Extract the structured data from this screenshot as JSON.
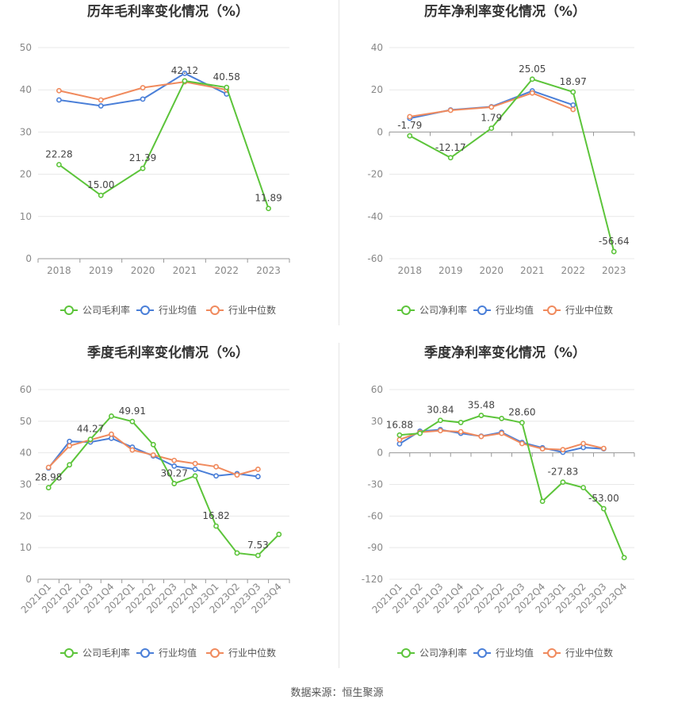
{
  "source_label": "数据来源：恒生聚源",
  "colors": {
    "company": "#5cc43a",
    "industry_avg": "#4a7fd8",
    "industry_median": "#f08a5d",
    "grid": "#e8e8e8",
    "axis_text": "#888888",
    "label_text": "#444444",
    "title_text": "#333333"
  },
  "chart_data": [
    {
      "id": "annual-gross",
      "type": "line",
      "title": "历年毛利率变化情况（%）",
      "categories": [
        "2018",
        "2019",
        "2020",
        "2021",
        "2022",
        "2023"
      ],
      "ylim": [
        0,
        50
      ],
      "yticks": [
        0,
        10,
        20,
        30,
        40,
        50
      ],
      "series": [
        {
          "name": "公司毛利率",
          "key": "company",
          "values": [
            22.28,
            15.0,
            21.39,
            42.12,
            40.58,
            11.89
          ]
        },
        {
          "name": "行业均值",
          "key": "industry_avg",
          "values": [
            37.6,
            36.2,
            37.8,
            43.9,
            39.0,
            null
          ]
        },
        {
          "name": "行业中位数",
          "key": "industry_median",
          "values": [
            39.8,
            37.6,
            40.5,
            41.9,
            40.0,
            null
          ]
        }
      ],
      "data_labels": [
        {
          "index": 0,
          "text": "22.28"
        },
        {
          "index": 1,
          "text": "15.00"
        },
        {
          "index": 2,
          "text": "21.39"
        },
        {
          "index": 3,
          "text": "42.12"
        },
        {
          "index": 4,
          "text": "40.58"
        },
        {
          "index": 5,
          "text": "11.89"
        }
      ]
    },
    {
      "id": "annual-net",
      "type": "line",
      "title": "历年净利率变化情况（%）",
      "categories": [
        "2018",
        "2019",
        "2020",
        "2021",
        "2022",
        "2023"
      ],
      "ylim": [
        -60,
        40
      ],
      "yticks": [
        -60,
        -40,
        -20,
        0,
        20,
        40
      ],
      "series": [
        {
          "name": "公司净利率",
          "key": "company",
          "values": [
            -1.79,
            -12.17,
            1.79,
            25.05,
            18.97,
            -56.64
          ]
        },
        {
          "name": "行业均值",
          "key": "industry_avg",
          "values": [
            6.5,
            10.5,
            12.0,
            19.5,
            12.8,
            null
          ]
        },
        {
          "name": "行业中位数",
          "key": "industry_median",
          "values": [
            7.3,
            10.3,
            11.8,
            18.5,
            10.7,
            null
          ]
        }
      ],
      "data_labels": [
        {
          "index": 0,
          "text": "-1.79"
        },
        {
          "index": 1,
          "text": "-12.17"
        },
        {
          "index": 2,
          "text": "1.79"
        },
        {
          "index": 3,
          "text": "25.05"
        },
        {
          "index": 4,
          "text": "18.97"
        },
        {
          "index": 5,
          "text": "-56.64"
        }
      ]
    },
    {
      "id": "quarterly-gross",
      "type": "line",
      "title": "季度毛利率变化情况（%）",
      "categories": [
        "2021Q1",
        "2021Q2",
        "2021Q3",
        "2021Q4",
        "2022Q1",
        "2022Q2",
        "2022Q3",
        "2022Q4",
        "2023Q1",
        "2023Q2",
        "2023Q3",
        "2023Q4"
      ],
      "ylim": [
        0,
        60
      ],
      "yticks": [
        0,
        10,
        20,
        30,
        40,
        50,
        60
      ],
      "series": [
        {
          "name": "公司毛利率",
          "key": "company",
          "values": [
            28.98,
            36.2,
            44.27,
            51.6,
            49.91,
            42.6,
            30.27,
            32.7,
            16.82,
            8.3,
            7.53,
            14.2
          ]
        },
        {
          "name": "行业均值",
          "key": "industry_avg",
          "values": [
            35.2,
            43.6,
            43.4,
            44.6,
            41.8,
            39.0,
            35.8,
            34.8,
            32.7,
            33.4,
            32.5,
            null
          ]
        },
        {
          "name": "行业中位数",
          "key": "industry_median",
          "values": [
            35.4,
            42.2,
            44.1,
            45.9,
            40.9,
            39.3,
            37.6,
            36.6,
            35.6,
            33.0,
            34.8,
            null
          ]
        }
      ],
      "data_labels": [
        {
          "index": 0,
          "text": "28.98"
        },
        {
          "index": 2,
          "text": "44.27"
        },
        {
          "index": 4,
          "text": "49.91"
        },
        {
          "index": 6,
          "text": "30.27"
        },
        {
          "index": 8,
          "text": "16.82"
        },
        {
          "index": 10,
          "text": "7.53"
        }
      ]
    },
    {
      "id": "quarterly-net",
      "type": "line",
      "title": "季度净利率变化情况（%）",
      "categories": [
        "2021Q1",
        "2021Q2",
        "2021Q3",
        "2021Q4",
        "2022Q1",
        "2022Q2",
        "2022Q3",
        "2022Q4",
        "2023Q1",
        "2023Q2",
        "2023Q3",
        "2023Q4"
      ],
      "ylim": [
        -120,
        60
      ],
      "yticks": [
        -120,
        -90,
        -60,
        -30,
        0,
        30,
        60
      ],
      "series": [
        {
          "name": "公司净利率",
          "key": "company",
          "values": [
            16.88,
            18.5,
            30.84,
            28.8,
            35.48,
            32.6,
            28.6,
            -46.0,
            -27.83,
            -33.0,
            -53.0,
            -99.5
          ]
        },
        {
          "name": "行业均值",
          "key": "industry_avg",
          "values": [
            8.5,
            20.5,
            22.0,
            18.5,
            15.8,
            19.5,
            9.8,
            4.8,
            0.5,
            5.0,
            3.8,
            null
          ]
        },
        {
          "name": "行业中位数",
          "key": "industry_median",
          "values": [
            12.5,
            19.5,
            21.0,
            20.0,
            15.5,
            18.5,
            8.8,
            3.8,
            3.0,
            8.8,
            4.2,
            null
          ]
        }
      ],
      "data_labels": [
        {
          "index": 0,
          "text": "16.88"
        },
        {
          "index": 2,
          "text": "30.84"
        },
        {
          "index": 4,
          "text": "35.48"
        },
        {
          "index": 6,
          "text": "28.60"
        },
        {
          "index": 8,
          "text": "-27.83"
        },
        {
          "index": 10,
          "text": "-53.00"
        }
      ]
    }
  ]
}
